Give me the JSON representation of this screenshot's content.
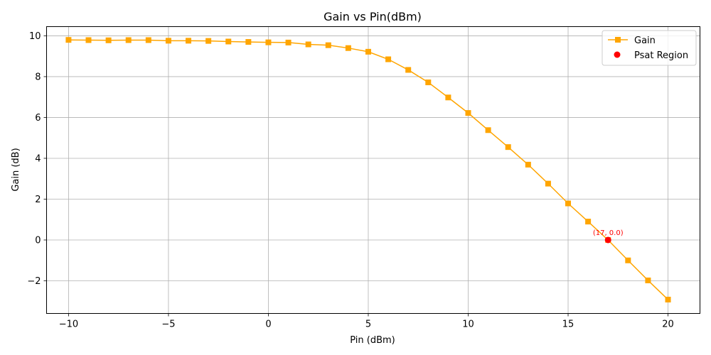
{
  "chart_data": {
    "type": "line",
    "title": "Gain vs Pin(dBm)",
    "xlabel": "Pin (dBm)",
    "ylabel": "Gain (dB)",
    "xlim": [
      -11.1,
      21.6
    ],
    "ylim": [
      -3.6,
      10.45
    ],
    "xticks": [
      -10,
      -5,
      0,
      5,
      10,
      15,
      20
    ],
    "xtick_labels": [
      "−10",
      "−5",
      "0",
      "5",
      "10",
      "15",
      "20"
    ],
    "yticks": [
      -2,
      0,
      2,
      4,
      6,
      8,
      10
    ],
    "ytick_labels": [
      "−2",
      "0",
      "2",
      "4",
      "6",
      "8",
      "10"
    ],
    "grid": true,
    "legend_position": "top-right",
    "series": [
      {
        "name": "Gain",
        "color": "#ffa500",
        "marker": "square",
        "x": [
          -10,
          -9,
          -8,
          -7,
          -6,
          -5,
          -4,
          -3,
          -2,
          -1,
          0,
          1,
          2,
          3,
          4,
          5,
          6,
          7,
          8,
          9,
          10,
          11,
          12,
          13,
          14,
          15,
          16,
          17,
          18,
          19,
          20
        ],
        "y": [
          9.8,
          9.79,
          9.78,
          9.79,
          9.79,
          9.76,
          9.76,
          9.75,
          9.72,
          9.7,
          9.68,
          9.67,
          9.58,
          9.54,
          9.4,
          9.22,
          8.85,
          8.33,
          7.72,
          6.98,
          6.22,
          5.38,
          4.55,
          3.69,
          2.76,
          1.79,
          0.9,
          0.0,
          -1.0,
          -1.98,
          -2.92
        ]
      },
      {
        "name": "Psat Region",
        "color": "#ff0000",
        "marker": "circle",
        "x": [
          17
        ],
        "y": [
          0.0
        ]
      }
    ],
    "annotations": [
      {
        "text": "(17, 0.0)",
        "x": 17,
        "y": 0.0,
        "color": "#ff0000"
      }
    ]
  }
}
